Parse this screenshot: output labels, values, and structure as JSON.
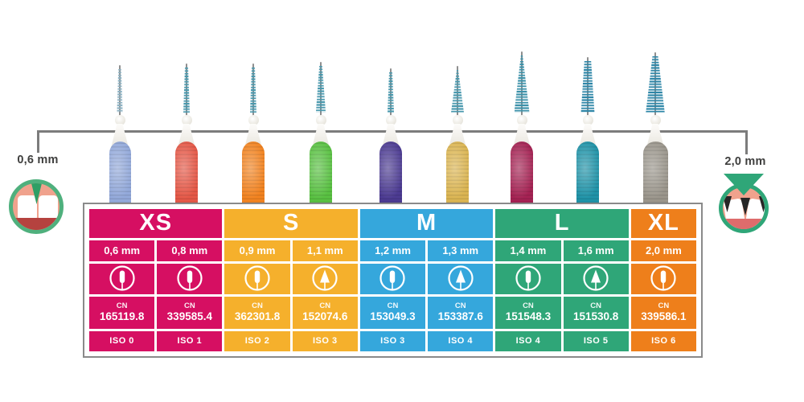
{
  "annotations": {
    "left": {
      "label": "0,6 mm"
    },
    "right": {
      "label": "2,0 mm"
    }
  },
  "colors": {
    "connector_line": "#7C7C7C",
    "table_border": "#8A8A8A",
    "label_text": "#3E3E3D",
    "gum": "#F0A28D",
    "tooth_ring_small": "#4FB07D",
    "tooth_triangle_small": "#2F9F65",
    "tooth_ring_large": "#2FA678",
    "band_small": "#B5423F",
    "band_large": "#DE6C6C"
  },
  "brushes": [
    {
      "name": "brush-0,6mm",
      "size": "0,6 mm",
      "handle_color": "#93A9DA",
      "bristle_color": "#8FB3C4",
      "shape": "cylindrical"
    },
    {
      "name": "brush-0,8mm",
      "size": "0,8 mm",
      "handle_color": "#E55847",
      "bristle_color": "#4A99AE",
      "shape": "cylindrical"
    },
    {
      "name": "brush-0,9mm",
      "size": "0,9 mm",
      "handle_color": "#F28320",
      "bristle_color": "#4A99AE",
      "shape": "cylindrical"
    },
    {
      "name": "brush-1,1mm",
      "size": "1,1 mm",
      "handle_color": "#59C142",
      "bristle_color": "#4A99AE",
      "shape": "slightly-tapered"
    },
    {
      "name": "brush-1,2mm",
      "size": "1,2 mm",
      "handle_color": "#4C3B92",
      "bristle_color": "#4A99AE",
      "shape": "cylindrical"
    },
    {
      "name": "brush-1,3mm",
      "size": "1,3 mm",
      "handle_color": "#DBB552",
      "bristle_color": "#4A99AE",
      "shape": "tapered"
    },
    {
      "name": "brush-1,4mm",
      "size": "1,4 mm",
      "handle_color": "#A52253",
      "bristle_color": "#3D92AA",
      "shape": "tapered"
    },
    {
      "name": "brush-1,6mm",
      "size": "1,6 mm",
      "handle_color": "#1F93A8",
      "bristle_color": "#2F87A8",
      "shape": "cylindrical"
    },
    {
      "name": "brush-2,0mm",
      "size": "2,0 mm",
      "handle_color": "#9B968C",
      "bristle_color": "#2F87A8",
      "shape": "slightly-tapered"
    }
  ],
  "table": {
    "cn_prefix": "CN",
    "groups": [
      {
        "label": "XS",
        "color": "#D60F62",
        "span": 2
      },
      {
        "label": "S",
        "color": "#F5B02C",
        "span": 2
      },
      {
        "label": "M",
        "color": "#35A7DC",
        "span": 2
      },
      {
        "label": "L",
        "color": "#2FA678",
        "span": 2
      },
      {
        "label": "XL",
        "color": "#EE7F1B",
        "span": 1
      }
    ],
    "columns": [
      {
        "group": "XS",
        "size": "0,6 mm",
        "color": "#D60F62",
        "icon": "straight-brush",
        "cn": "165119.8",
        "iso": "ISO 0"
      },
      {
        "group": "XS",
        "size": "0,8 mm",
        "color": "#D60F62",
        "icon": "straight-brush",
        "cn": "339585.4",
        "iso": "ISO 1"
      },
      {
        "group": "S",
        "size": "0,9 mm",
        "color": "#F5B02C",
        "icon": "straight-brush",
        "cn": "362301.8",
        "iso": "ISO 2"
      },
      {
        "group": "S",
        "size": "1,1 mm",
        "color": "#F5B02C",
        "icon": "conical-brush",
        "cn": "152074.6",
        "iso": "ISO 3"
      },
      {
        "group": "M",
        "size": "1,2 mm",
        "color": "#35A7DC",
        "icon": "straight-brush",
        "cn": "153049.3",
        "iso": "ISO 3"
      },
      {
        "group": "M",
        "size": "1,3 mm",
        "color": "#35A7DC",
        "icon": "conical-brush",
        "cn": "153387.6",
        "iso": "ISO 4"
      },
      {
        "group": "L",
        "size": "1,4 mm",
        "color": "#2FA678",
        "icon": "straight-brush",
        "cn": "151548.3",
        "iso": "ISO 4"
      },
      {
        "group": "L",
        "size": "1,6 mm",
        "color": "#2FA678",
        "icon": "conical-brush",
        "cn": "151530.8",
        "iso": "ISO 5"
      },
      {
        "group": "XL",
        "size": "2,0 mm",
        "color": "#EE7F1B",
        "icon": "straight-brush",
        "cn": "339586.1",
        "iso": "ISO 6"
      }
    ]
  }
}
